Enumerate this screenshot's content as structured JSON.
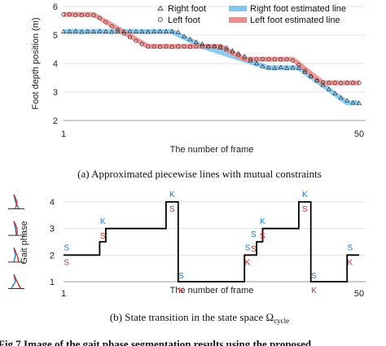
{
  "chart_data": [
    {
      "type": "line",
      "ylabel": "Foot depth position (m)",
      "xlabel": "The number of frame",
      "xlim": [
        1,
        50
      ],
      "ylim": [
        2,
        6
      ],
      "x_ticks": [
        "1",
        "50"
      ],
      "y_ticks": [
        "2",
        "3",
        "4",
        "5",
        "6"
      ],
      "legend_position": "top-right",
      "caption": "(a)  Approximated piecewise lines with mutual constraints",
      "series": [
        {
          "name": "Right foot",
          "kind": "scatter",
          "marker": "triangle",
          "x": [
            1,
            2,
            3,
            4,
            5,
            6,
            7,
            8,
            9,
            10,
            11,
            12,
            13,
            14,
            15,
            16,
            17,
            18,
            19,
            20,
            21,
            22,
            23,
            24,
            25,
            26,
            27,
            28,
            29,
            30,
            31,
            32,
            33,
            34,
            35,
            36,
            37,
            38,
            39,
            40,
            41,
            42,
            43,
            44,
            45,
            46,
            47,
            48,
            49,
            50
          ],
          "values": [
            5.12,
            5.12,
            5.13,
            5.11,
            5.12,
            5.12,
            5.13,
            5.12,
            5.11,
            5.12,
            5.12,
            5.13,
            5.12,
            5.12,
            5.11,
            5.12,
            5.13,
            5.12,
            5.12,
            5.1,
            4.95,
            4.85,
            4.75,
            4.68,
            4.6,
            4.6,
            4.55,
            4.5,
            4.45,
            4.35,
            4.25,
            4.1,
            4.0,
            3.9,
            3.85,
            3.84,
            3.86,
            3.84,
            3.85,
            3.84,
            3.7,
            3.55,
            3.4,
            3.25,
            3.1,
            2.95,
            2.8,
            2.7,
            2.62,
            2.6
          ]
        },
        {
          "name": "Left foot",
          "kind": "scatter",
          "marker": "circle",
          "x": [
            1,
            2,
            3,
            4,
            5,
            6,
            7,
            8,
            9,
            10,
            11,
            12,
            13,
            14,
            15,
            16,
            17,
            18,
            19,
            20,
            21,
            22,
            23,
            24,
            25,
            26,
            27,
            28,
            29,
            30,
            31,
            32,
            33,
            34,
            35,
            36,
            37,
            38,
            39,
            40,
            41,
            42,
            43,
            44,
            45,
            46,
            47,
            48,
            49,
            50
          ],
          "values": [
            5.72,
            5.72,
            5.7,
            5.69,
            5.7,
            5.69,
            5.6,
            5.45,
            5.3,
            5.18,
            5.05,
            4.92,
            4.8,
            4.68,
            4.6,
            4.6,
            4.59,
            4.6,
            4.58,
            4.6,
            4.6,
            4.59,
            4.6,
            4.6,
            4.6,
            4.6,
            4.59,
            4.55,
            4.4,
            4.3,
            4.2,
            4.15,
            4.15,
            4.16,
            4.15,
            4.15,
            4.14,
            4.15,
            4.1,
            3.95,
            3.75,
            3.55,
            3.4,
            3.33,
            3.32,
            3.32,
            3.31,
            3.32,
            3.32,
            3.32
          ]
        },
        {
          "name": "Right foot estimated line",
          "kind": "line",
          "color": "#7ec8ef",
          "x": [
            1,
            19,
            24,
            35,
            40,
            48,
            50
          ],
          "values": [
            5.12,
            5.12,
            4.6,
            3.85,
            3.85,
            2.62,
            2.62
          ]
        },
        {
          "name": "Left foot estimated line",
          "kind": "line",
          "color": "#f08c8c",
          "x": [
            1,
            6,
            15,
            27,
            31,
            39,
            44,
            50
          ],
          "values": [
            5.72,
            5.72,
            4.6,
            4.6,
            4.15,
            4.15,
            3.32,
            3.32
          ]
        }
      ]
    },
    {
      "type": "line",
      "ylabel": "Gait phase",
      "xlabel": "The number of frame",
      "xlim": [
        1,
        50
      ],
      "ylim": [
        1,
        4
      ],
      "x_ticks": [
        "1",
        "50"
      ],
      "y_ticks": [
        "1",
        "2",
        "3",
        "4"
      ],
      "caption": "(b)  State transition in the state space Ω",
      "caption_subscript": "cycle",
      "series": [
        {
          "kind": "step",
          "color": "#000000",
          "points": [
            [
              1,
              2
            ],
            [
              7,
              2
            ],
            [
              7,
              2.5
            ],
            [
              8,
              2.5
            ],
            [
              8,
              3
            ],
            [
              18,
              3
            ],
            [
              18,
              4
            ],
            [
              20,
              4
            ],
            [
              20,
              1
            ],
            [
              31,
              1
            ],
            [
              31,
              2
            ],
            [
              33,
              2
            ],
            [
              33,
              2.5
            ],
            [
              34,
              2.5
            ],
            [
              34,
              3
            ],
            [
              40,
              3
            ],
            [
              40,
              4
            ],
            [
              42,
              4
            ],
            [
              42,
              1
            ],
            [
              48,
              1
            ],
            [
              48,
              2
            ],
            [
              50,
              2
            ]
          ]
        }
      ],
      "annotations": [
        {
          "text": "S",
          "color": "#1a7fc4",
          "x": 1.5,
          "y": 2.3
        },
        {
          "text": "S",
          "color": "#d42a2a",
          "x": 1.5,
          "y": 1.75
        },
        {
          "text": "K",
          "color": "#1a7fc4",
          "x": 7.5,
          "y": 3.3
        },
        {
          "text": "S",
          "color": "#d42a2a",
          "x": 7.5,
          "y": 2.75
        },
        {
          "text": "K",
          "color": "#1a7fc4",
          "x": 19,
          "y": 4.3
        },
        {
          "text": "S",
          "color": "#d42a2a",
          "x": 19,
          "y": 3.75
        },
        {
          "text": "S",
          "color": "#1a7fc4",
          "x": 20.5,
          "y": 1.25
        },
        {
          "text": "K",
          "color": "#d42a2a",
          "x": 20.5,
          "y": 0.7
        },
        {
          "text": "S",
          "color": "#1a7fc4",
          "x": 31.5,
          "y": 2.3
        },
        {
          "text": "K",
          "color": "#d42a2a",
          "x": 31.5,
          "y": 1.75
        },
        {
          "text": "S",
          "color": "#1a7fc4",
          "x": 32.5,
          "y": 2.8
        },
        {
          "text": "S",
          "color": "#d42a2a",
          "x": 32.5,
          "y": 2.25
        },
        {
          "text": "K",
          "color": "#1a7fc4",
          "x": 34,
          "y": 3.3
        },
        {
          "text": "S",
          "color": "#d42a2a",
          "x": 34,
          "y": 2.75
        },
        {
          "text": "K",
          "color": "#1a7fc4",
          "x": 41,
          "y": 4.3
        },
        {
          "text": "S",
          "color": "#d42a2a",
          "x": 41,
          "y": 3.75
        },
        {
          "text": "S",
          "color": "#1a7fc4",
          "x": 42.5,
          "y": 1.25
        },
        {
          "text": "K",
          "color": "#d42a2a",
          "x": 42.5,
          "y": 0.7
        },
        {
          "text": "S",
          "color": "#1a7fc4",
          "x": 48.5,
          "y": 2.3
        },
        {
          "text": "K",
          "color": "#d42a2a",
          "x": 48.5,
          "y": 1.75
        }
      ]
    }
  ],
  "footer_text": "Fig.7   Image of the gait phase segmentation results using the proposed"
}
